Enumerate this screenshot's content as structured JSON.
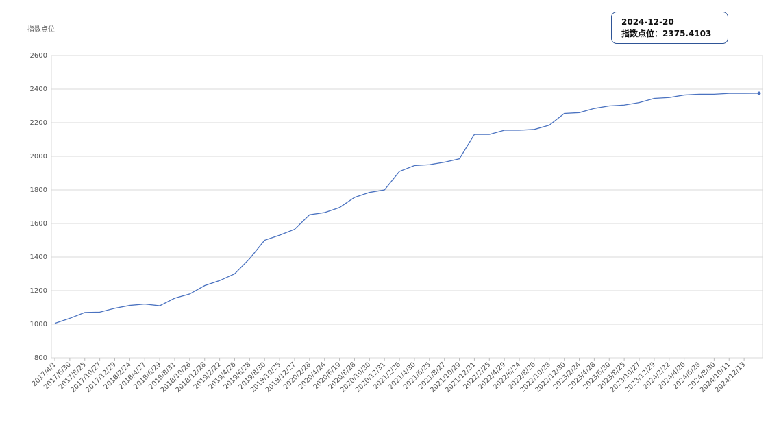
{
  "chart_data": {
    "type": "line",
    "y_axis_label": "指数点位",
    "categories": [
      "2017/4/1",
      "2017/6/30",
      "2017/8/25",
      "2017/10/27",
      "2017/12/29",
      "2018/2/24",
      "2018/4/27",
      "2018/6/29",
      "2018/8/31",
      "2018/10/26",
      "2018/12/28",
      "2019/2/22",
      "2019/4/26",
      "2019/6/28",
      "2019/8/30",
      "2019/10/25",
      "2019/12/27",
      "2020/2/28",
      "2020/4/24",
      "2020/6/19",
      "2020/8/28",
      "2020/10/30",
      "2020/12/31",
      "2021/2/26",
      "2021/4/30",
      "2021/6/25",
      "2021/8/27",
      "2021/10/29",
      "2021/12/31",
      "2022/2/25",
      "2022/4/29",
      "2022/6/24",
      "2022/8/26",
      "2022/10/28",
      "2022/12/30",
      "2023/2/24",
      "2023/4/28",
      "2023/6/30",
      "2023/8/25",
      "2023/10/27",
      "2023/12/29",
      "2024/2/22",
      "2024/4/26",
      "2024/6/28",
      "2024/8/30",
      "2024/10/11",
      "2024/12/13",
      null
    ],
    "values": [
      1005,
      1035,
      1070,
      1072,
      1095,
      1112,
      1120,
      1110,
      1155,
      1180,
      1230,
      1260,
      1300,
      1390,
      1500,
      1530,
      1565,
      1652,
      1665,
      1695,
      1755,
      1785,
      1800,
      1910,
      1945,
      1950,
      1965,
      1985,
      2130,
      2130,
      2155,
      2155,
      2160,
      2185,
      2255,
      2260,
      2285,
      2300,
      2305,
      2320,
      2345,
      2350,
      2365,
      2370,
      2370,
      2375,
      2375,
      2375.4103
    ],
    "color": "#4a72c0",
    "ylim": [
      800,
      2600
    ],
    "yticks": [
      800,
      1000,
      1200,
      1400,
      1600,
      1800,
      2000,
      2200,
      2400,
      2600
    ],
    "grid": true,
    "tooltip": {
      "date": "2024-12-20",
      "label": "指数点位："
    }
  }
}
